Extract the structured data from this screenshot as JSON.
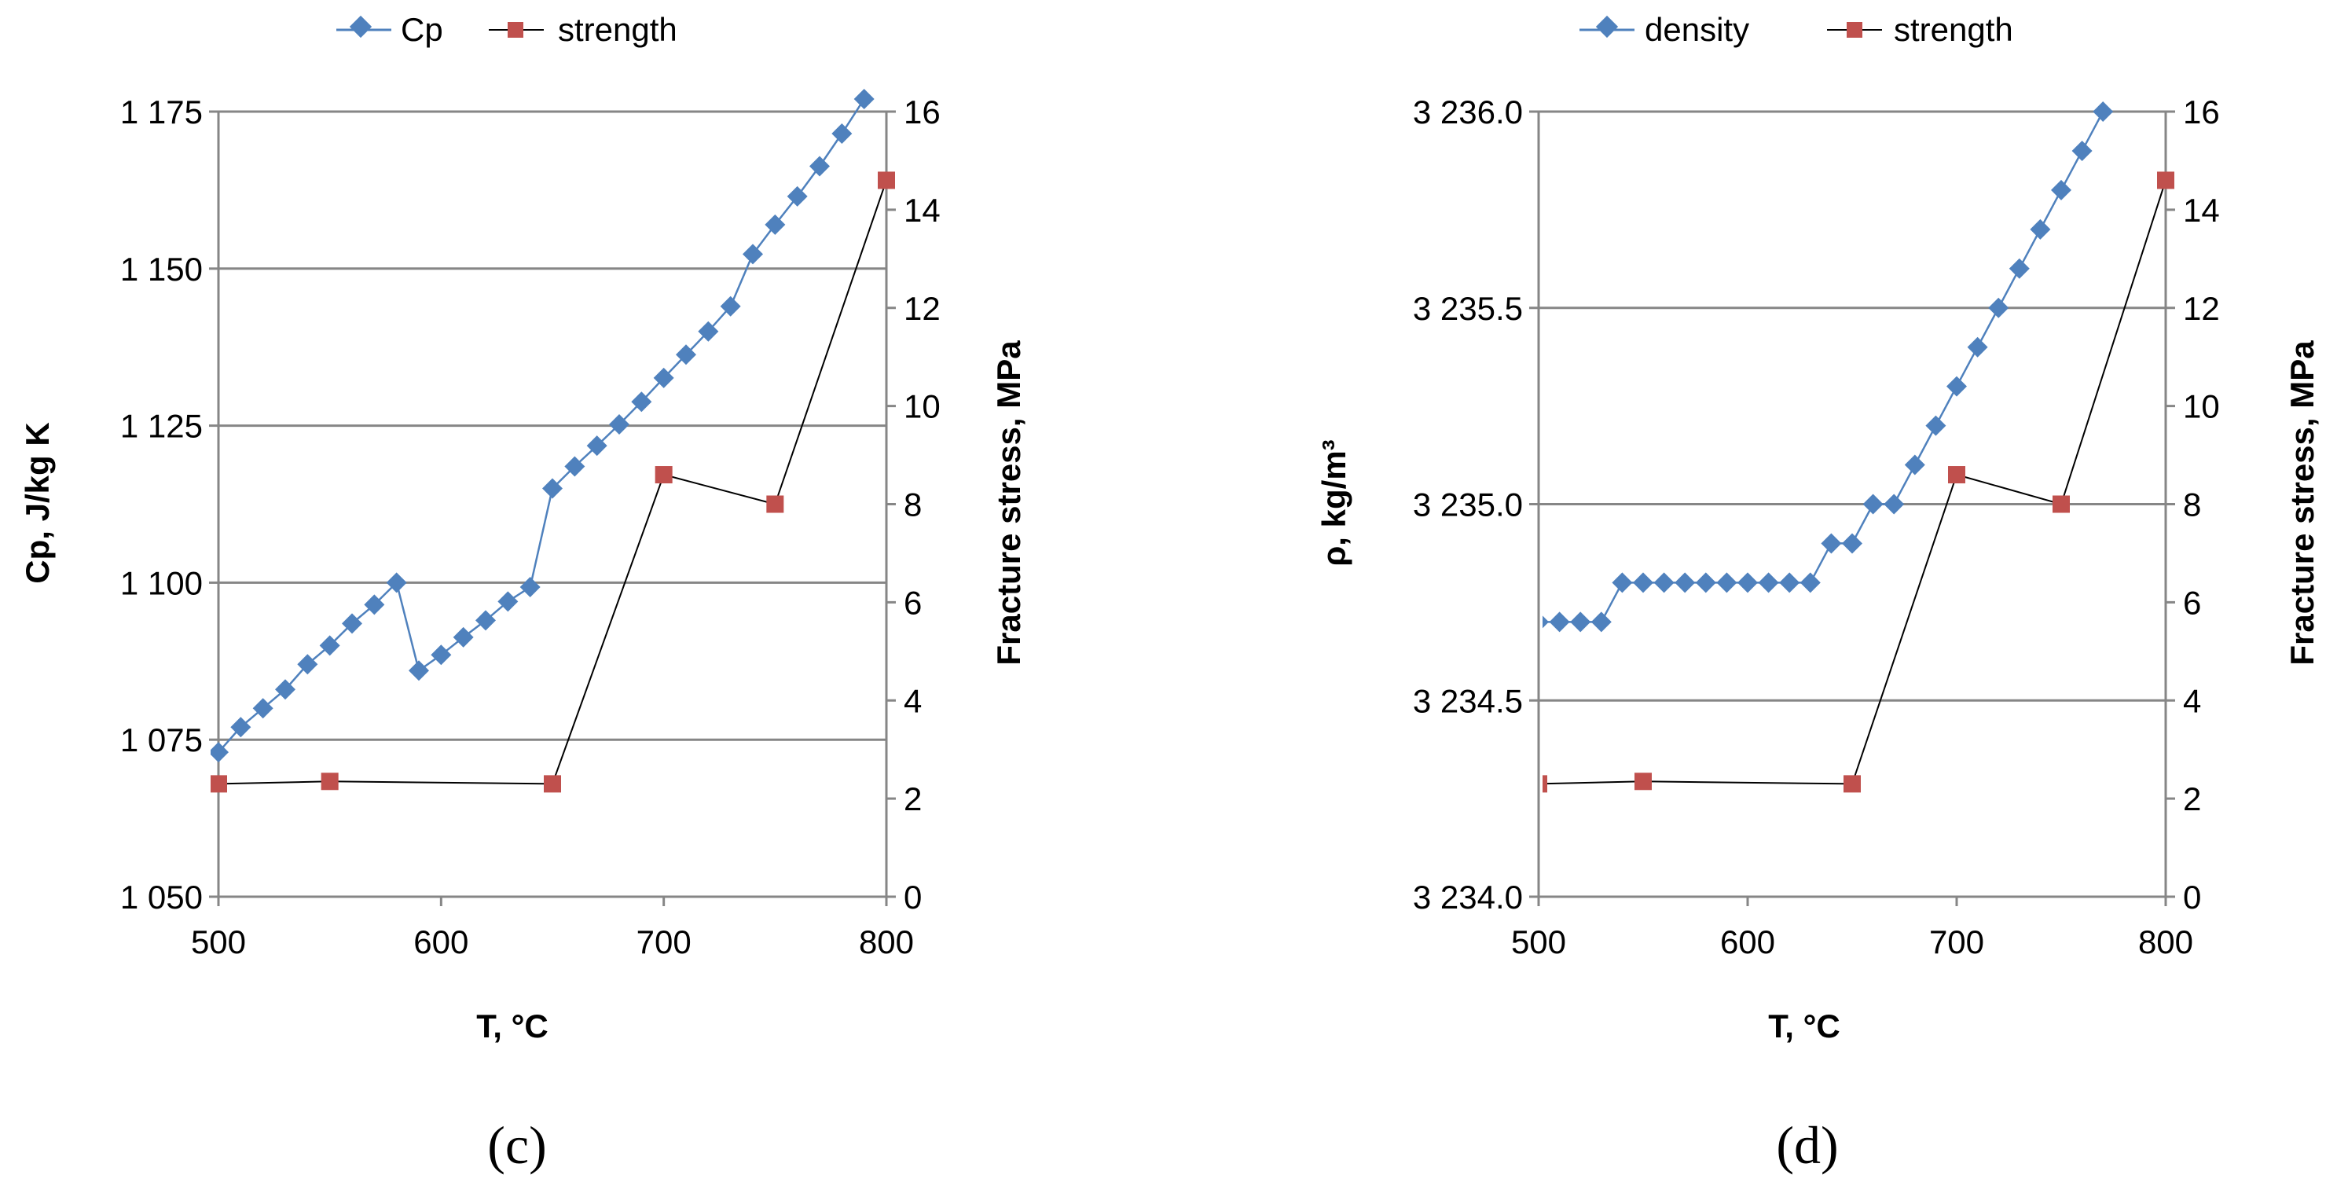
{
  "colors": {
    "primary": "#4F81BD",
    "strength": "#C0504D",
    "strength_line": "#000000",
    "grid": "#868686"
  },
  "chart_data": [
    {
      "type": "line",
      "panel_label": "(c)",
      "xlabel": "T, °C",
      "ylabel_left": "Cp, J/kg K",
      "ylabel_right": "Fracture stress, MPa",
      "xlim": [
        500,
        800
      ],
      "ylim_left": [
        1050,
        1175
      ],
      "ylim_right": [
        0,
        16
      ],
      "x_ticks": [
        500,
        600,
        700,
        800
      ],
      "x_tick_labels": [
        "500",
        "600",
        "700",
        "800"
      ],
      "y_left_ticks": [
        1050,
        1075,
        1100,
        1125,
        1150,
        1175
      ],
      "y_left_tick_labels": [
        "1 050",
        "1 075",
        "1 100",
        "1 125",
        "1 150",
        "1 175"
      ],
      "y_right_ticks": [
        0,
        2,
        4,
        6,
        8,
        10,
        12,
        14,
        16
      ],
      "y_right_tick_labels": [
        "0",
        "2",
        "4",
        "6",
        "8",
        "10",
        "12",
        "14",
        "16"
      ],
      "grid": true,
      "legend_position": "top-center",
      "series": [
        {
          "name": "Cp",
          "axis": "left",
          "marker": "diamond",
          "color": "#4F81BD",
          "x": [
            500,
            510,
            520,
            530,
            540,
            550,
            560,
            570,
            580,
            590,
            600,
            610,
            620,
            630,
            640,
            650,
            660,
            670,
            680,
            690,
            700,
            710,
            720,
            730,
            740,
            750,
            760,
            770,
            780,
            790
          ],
          "y": [
            1073,
            1077,
            1080,
            1083,
            1087,
            1090,
            1093.5,
            1096.5,
            1100,
            1086,
            1088.5,
            1091.3,
            1094,
            1097,
            1099.3,
            1115,
            1118.5,
            1121.8,
            1125.2,
            1128.8,
            1132.6,
            1136.3,
            1140,
            1144,
            1152.3,
            1157,
            1161.5,
            1166.3,
            1171.5,
            1177
          ]
        },
        {
          "name": "strength",
          "axis": "right",
          "marker": "square",
          "color": "#C0504D",
          "x": [
            500,
            550,
            650,
            700,
            750,
            800
          ],
          "y": [
            2.3,
            2.35,
            2.3,
            8.6,
            8.0,
            14.6
          ]
        }
      ]
    },
    {
      "type": "line",
      "panel_label": "(d)",
      "xlabel": "T, °C",
      "ylabel_left": "ρ, kg/m³",
      "ylabel_right": "Fracture stress, MPa",
      "xlim": [
        500,
        800
      ],
      "ylim_left": [
        3234.0,
        3236.0
      ],
      "ylim_right": [
        0,
        16
      ],
      "x_ticks": [
        500,
        600,
        700,
        800
      ],
      "x_tick_labels": [
        "500",
        "600",
        "700",
        "800"
      ],
      "y_left_ticks": [
        3234.0,
        3234.5,
        3235.0,
        3235.5,
        3236.0
      ],
      "y_left_tick_labels": [
        "3 234.0",
        "3 234.5",
        "3 235.0",
        "3 235.5",
        "3 236.0"
      ],
      "y_right_ticks": [
        0,
        2,
        4,
        6,
        8,
        10,
        12,
        14,
        16
      ],
      "y_right_tick_labels": [
        "0",
        "2",
        "4",
        "6",
        "8",
        "10",
        "12",
        "14",
        "16"
      ],
      "grid": true,
      "legend_position": "top-center",
      "series": [
        {
          "name": "density",
          "axis": "left",
          "marker": "diamond",
          "color": "#4F81BD",
          "x": [
            500,
            510,
            520,
            530,
            540,
            550,
            560,
            570,
            580,
            590,
            600,
            610,
            620,
            630,
            640,
            650,
            660,
            670,
            680,
            690,
            700,
            710,
            720,
            730,
            740,
            750,
            760,
            770
          ],
          "y": [
            3234.7,
            3234.7,
            3234.7,
            3234.7,
            3234.8,
            3234.8,
            3234.8,
            3234.8,
            3234.8,
            3234.8,
            3234.8,
            3234.8,
            3234.8,
            3234.8,
            3234.9,
            3234.9,
            3235.0,
            3235.0,
            3235.1,
            3235.2,
            3235.3,
            3235.4,
            3235.5,
            3235.6,
            3235.7,
            3235.8,
            3235.9,
            3236.0
          ]
        },
        {
          "name": "strength",
          "axis": "right",
          "marker": "square",
          "color": "#C0504D",
          "x": [
            500,
            550,
            650,
            700,
            750,
            800
          ],
          "y": [
            2.3,
            2.35,
            2.3,
            8.6,
            8.0,
            14.6
          ]
        }
      ]
    }
  ]
}
